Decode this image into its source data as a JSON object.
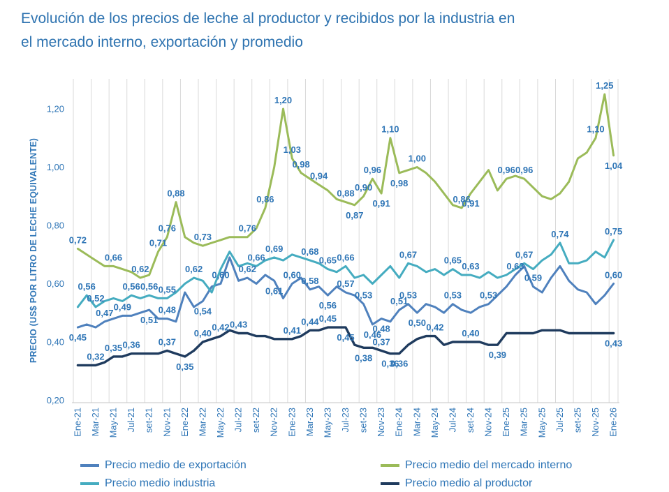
{
  "title": {
    "line1": "Evolución de los precios de leche al productor y recibidos por la industria en",
    "line2": "el mercado interno, exportación y promedio"
  },
  "y_axis": {
    "label": "PRECIO (US$ POR LITRO DE LECHE EQUIVALENTE)",
    "ticks": [
      "1,20",
      "1,00",
      "0,80",
      "0,60",
      "0,40",
      "0,20"
    ],
    "tick_values": [
      1.2,
      1.0,
      0.8,
      0.6,
      0.4,
      0.2
    ]
  },
  "x_axis": {
    "tick_labels": [
      "Ene-21",
      "Mar-21",
      "May-21",
      "Jul-21",
      "set-21",
      "Nov-21",
      "Ene-22",
      "Mar-22",
      "May-22",
      "Jul-22",
      "set-22",
      "Nov-22",
      "Ene-23",
      "Mar-23",
      "May-23",
      "Jul-23",
      "set-23",
      "Nov-23",
      "Ene-24",
      "Mar-24",
      "May-24",
      "Jul-24",
      "set-24",
      "Nov-24",
      "Ene-25",
      "Mar-25",
      "May-25",
      "Jul-25",
      "set-25",
      "Nov-25",
      "Ene-26"
    ]
  },
  "chart_data": {
    "type": "line",
    "x_start": "Ene-21",
    "x_end": "Ene-26",
    "points_per_series": 61,
    "x_unit": "month",
    "ylim": [
      0.2,
      1.25
    ],
    "grid": "vertical-only",
    "legend_position": "bottom",
    "series": [
      {
        "name": "Precio medio de exportación",
        "color": "#4f81bd",
        "values": [
          0.45,
          0.46,
          0.45,
          0.47,
          0.48,
          0.49,
          0.49,
          0.5,
          0.51,
          0.48,
          0.48,
          0.47,
          0.57,
          0.52,
          0.54,
          0.59,
          0.6,
          0.69,
          0.61,
          0.62,
          0.6,
          0.63,
          0.61,
          0.55,
          0.6,
          0.62,
          0.58,
          0.59,
          0.56,
          0.59,
          0.57,
          0.56,
          0.53,
          0.46,
          0.48,
          0.47,
          0.51,
          0.53,
          0.5,
          0.53,
          0.52,
          0.5,
          0.53,
          0.51,
          0.5,
          0.52,
          0.53,
          0.56,
          0.59,
          0.63,
          0.66,
          0.59,
          0.57,
          0.62,
          0.66,
          0.61,
          0.58,
          0.57,
          0.53,
          0.56,
          0.6
        ],
        "point_labels": [
          {
            "i": 0,
            "t": "0,45",
            "below": true
          },
          {
            "i": 3,
            "t": "0,47"
          },
          {
            "i": 5,
            "t": "0,49"
          },
          {
            "i": 8,
            "t": "0,51",
            "below": true
          },
          {
            "i": 10,
            "t": "0,48"
          },
          {
            "i": 14,
            "t": "0,54",
            "below": true
          },
          {
            "i": 16,
            "t": "0,60"
          },
          {
            "i": 19,
            "t": "0,62"
          },
          {
            "i": 22,
            "t": "0,61",
            "below": true
          },
          {
            "i": 24,
            "t": "0,60"
          },
          {
            "i": 26,
            "t": "0,58"
          },
          {
            "i": 28,
            "t": "0,56",
            "below": true
          },
          {
            "i": 30,
            "t": "0,57"
          },
          {
            "i": 32,
            "t": "0,53"
          },
          {
            "i": 33,
            "t": "0,46",
            "below": true
          },
          {
            "i": 34,
            "t": "0,48",
            "below": true
          },
          {
            "i": 36,
            "t": "0,51"
          },
          {
            "i": 37,
            "t": "0,53"
          },
          {
            "i": 38,
            "t": "0,50",
            "below": true
          },
          {
            "i": 42,
            "t": "0,53"
          },
          {
            "i": 46,
            "t": "0,53"
          },
          {
            "i": 49,
            "t": "0,63"
          },
          {
            "i": 51,
            "t": "0,59"
          },
          {
            "i": 60,
            "t": "0,60"
          }
        ]
      },
      {
        "name": "Precio medio del mercado interno",
        "color": "#9bbb59",
        "values": [
          0.72,
          0.7,
          0.68,
          0.66,
          0.66,
          0.65,
          0.64,
          0.62,
          0.63,
          0.71,
          0.76,
          0.88,
          0.76,
          0.74,
          0.73,
          0.74,
          0.75,
          0.76,
          0.76,
          0.76,
          0.79,
          0.86,
          1.0,
          1.2,
          1.03,
          0.98,
          0.96,
          0.94,
          0.92,
          0.89,
          0.88,
          0.87,
          0.9,
          0.96,
          0.91,
          1.1,
          0.98,
          0.99,
          1.0,
          0.98,
          0.95,
          0.91,
          0.87,
          0.86,
          0.91,
          0.95,
          0.99,
          0.92,
          0.96,
          0.97,
          0.96,
          0.93,
          0.9,
          0.89,
          0.91,
          0.95,
          1.03,
          1.05,
          1.1,
          1.25,
          1.04
        ],
        "point_labels": [
          {
            "i": 0,
            "t": "0,72"
          },
          {
            "i": 4,
            "t": "0,66"
          },
          {
            "i": 7,
            "t": "0,62"
          },
          {
            "i": 9,
            "t": "0,71"
          },
          {
            "i": 10,
            "t": "0,76"
          },
          {
            "i": 11,
            "t": "0,88"
          },
          {
            "i": 14,
            "t": "0,73"
          },
          {
            "i": 19,
            "t": "0,76"
          },
          {
            "i": 21,
            "t": "0,86"
          },
          {
            "i": 23,
            "t": "1,20"
          },
          {
            "i": 24,
            "t": "1,03"
          },
          {
            "i": 25,
            "t": "0,98"
          },
          {
            "i": 27,
            "t": "0,94"
          },
          {
            "i": 30,
            "t": "0,88"
          },
          {
            "i": 31,
            "t": "0,87",
            "below": true
          },
          {
            "i": 32,
            "t": "0,90"
          },
          {
            "i": 33,
            "t": "0,96"
          },
          {
            "i": 34,
            "t": "0,91",
            "below": true
          },
          {
            "i": 35,
            "t": "1,10"
          },
          {
            "i": 36,
            "t": "0,98",
            "below": true
          },
          {
            "i": 38,
            "t": "1,00"
          },
          {
            "i": 43,
            "t": "0,86"
          },
          {
            "i": 44,
            "t": "0,91",
            "below": true
          },
          {
            "i": 48,
            "t": "0,96"
          },
          {
            "i": 50,
            "t": "0,96"
          },
          {
            "i": 58,
            "t": "1,10"
          },
          {
            "i": 59,
            "t": "1,25"
          },
          {
            "i": 60,
            "t": "1,04",
            "below": true
          }
        ]
      },
      {
        "name": "Precio medio industria",
        "color": "#45acc0",
        "values": [
          0.52,
          0.56,
          0.52,
          0.54,
          0.55,
          0.54,
          0.56,
          0.55,
          0.56,
          0.55,
          0.55,
          0.57,
          0.6,
          0.62,
          0.61,
          0.57,
          0.65,
          0.71,
          0.66,
          0.67,
          0.66,
          0.68,
          0.69,
          0.68,
          0.7,
          0.69,
          0.68,
          0.67,
          0.65,
          0.64,
          0.66,
          0.62,
          0.63,
          0.6,
          0.63,
          0.66,
          0.62,
          0.67,
          0.66,
          0.64,
          0.65,
          0.63,
          0.65,
          0.63,
          0.63,
          0.62,
          0.64,
          0.62,
          0.63,
          0.65,
          0.67,
          0.65,
          0.68,
          0.7,
          0.74,
          0.67,
          0.67,
          0.68,
          0.71,
          0.69,
          0.75
        ],
        "point_labels": [
          {
            "i": 1,
            "t": "0,56"
          },
          {
            "i": 2,
            "t": "0,52"
          },
          {
            "i": 6,
            "t": "0,56"
          },
          {
            "i": 8,
            "t": "0,56"
          },
          {
            "i": 10,
            "t": "0,55"
          },
          {
            "i": 13,
            "t": "0,62"
          },
          {
            "i": 20,
            "t": "0,66"
          },
          {
            "i": 22,
            "t": "0,69"
          },
          {
            "i": 26,
            "t": "0,68"
          },
          {
            "i": 28,
            "t": "0,65"
          },
          {
            "i": 30,
            "t": "0,66"
          },
          {
            "i": 37,
            "t": "0,67"
          },
          {
            "i": 42,
            "t": "0,65"
          },
          {
            "i": 44,
            "t": "0,63"
          },
          {
            "i": 50,
            "t": "0,67"
          },
          {
            "i": 54,
            "t": "0,74"
          },
          {
            "i": 60,
            "t": "0,75"
          }
        ]
      },
      {
        "name": "Precio medio al productor",
        "color": "#1f3b5e",
        "values": [
          0.32,
          0.32,
          0.32,
          0.33,
          0.35,
          0.35,
          0.36,
          0.36,
          0.36,
          0.36,
          0.37,
          0.36,
          0.35,
          0.37,
          0.4,
          0.41,
          0.42,
          0.44,
          0.43,
          0.43,
          0.42,
          0.42,
          0.41,
          0.41,
          0.41,
          0.42,
          0.44,
          0.44,
          0.45,
          0.45,
          0.45,
          0.39,
          0.38,
          0.38,
          0.37,
          0.36,
          0.36,
          0.39,
          0.41,
          0.42,
          0.42,
          0.39,
          0.4,
          0.4,
          0.4,
          0.4,
          0.39,
          0.39,
          0.43,
          0.43,
          0.43,
          0.43,
          0.44,
          0.44,
          0.44,
          0.43,
          0.43,
          0.43,
          0.43,
          0.43,
          0.43
        ],
        "point_labels": [
          {
            "i": 2,
            "t": "0,32"
          },
          {
            "i": 4,
            "t": "0,35"
          },
          {
            "i": 6,
            "t": "0,36"
          },
          {
            "i": 10,
            "t": "0,37"
          },
          {
            "i": 12,
            "t": "0,35",
            "below": true
          },
          {
            "i": 14,
            "t": "0,40"
          },
          {
            "i": 16,
            "t": "0,42"
          },
          {
            "i": 18,
            "t": "0,43"
          },
          {
            "i": 24,
            "t": "0,41"
          },
          {
            "i": 26,
            "t": "0,44"
          },
          {
            "i": 28,
            "t": "0,45"
          },
          {
            "i": 30,
            "t": "0,45",
            "below": true
          },
          {
            "i": 32,
            "t": "0,38",
            "below": true
          },
          {
            "i": 34,
            "t": "0,37"
          },
          {
            "i": 35,
            "t": "0,36",
            "below": true
          },
          {
            "i": 36,
            "t": "0,36",
            "below": true
          },
          {
            "i": 40,
            "t": "0,42"
          },
          {
            "i": 44,
            "t": "0,40"
          },
          {
            "i": 47,
            "t": "0,39",
            "below": true
          },
          {
            "i": 60,
            "t": "0,43",
            "below": true
          }
        ]
      }
    ]
  },
  "legend": {
    "columns": [
      {
        "items": [
          {
            "label": "Precio medio de exportación",
            "series": 0
          },
          {
            "label": "Precio medio industria",
            "series": 2
          }
        ]
      },
      {
        "items": [
          {
            "label": "Precio medio del mercado interno",
            "series": 1
          },
          {
            "label": "Precio medio al productor",
            "series": 3
          }
        ]
      }
    ]
  },
  "colors": {
    "title_text": "#2e73b0",
    "label_text": "#2e75b6",
    "gridline": "#d9d9d9",
    "axis_line": "#c6c6c6",
    "export_line": "#4f81bd",
    "internal_market_line": "#9bbb59",
    "industry_line": "#45acc0",
    "producer_line": "#1f3b5e"
  }
}
